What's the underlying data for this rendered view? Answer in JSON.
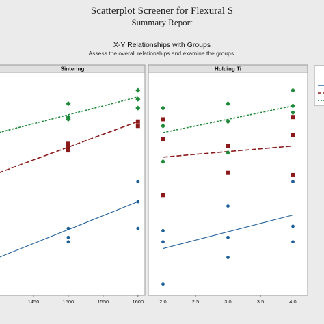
{
  "report": {
    "title": "Scatterplot Screener for Flexural S",
    "subtitle": "Summary Report"
  },
  "section": {
    "title": "X-Y Relationships with Groups",
    "subtitle": "Assess the overall relationships and examine the groups."
  },
  "colors": {
    "background": "#ebebeb",
    "panel_bg": "#ffffff",
    "strip_bg": "#e0e0e0",
    "blue": "#1f5f99",
    "red": "#8b1a1a",
    "green": "#1e8a3a"
  },
  "chart_data": [
    {
      "type": "scatter",
      "panel": "Sintering",
      "x_ticks": [
        1450,
        1500,
        1550,
        1600
      ],
      "xlim": [
        1400,
        1610
      ],
      "ylim": [
        0,
        100
      ],
      "series": [
        {
          "color": "blue",
          "marker": "circle",
          "line": "solid",
          "points": [
            [
              1500,
              30
            ],
            [
              1500,
              26
            ],
            [
              1500,
              24
            ],
            [
              1600,
              42
            ],
            [
              1600,
              51
            ],
            [
              1600,
              30
            ]
          ],
          "fit": [
            [
              1400,
              17
            ],
            [
              1600,
              42
            ]
          ]
        },
        {
          "color": "red",
          "marker": "square",
          "line": "dashed",
          "points": [
            [
              1500,
              68
            ],
            [
              1500,
              66
            ],
            [
              1500,
              65
            ],
            [
              1600,
              76
            ],
            [
              1600,
              78
            ]
          ],
          "fit": [
            [
              1400,
              55
            ],
            [
              1600,
              78
            ]
          ]
        },
        {
          "color": "green",
          "marker": "diamond",
          "line": "dotted",
          "points": [
            [
              1500,
              86
            ],
            [
              1500,
              80
            ],
            [
              1500,
              79
            ],
            [
              1600,
              92
            ],
            [
              1600,
              88
            ],
            [
              1600,
              84
            ]
          ],
          "fit": [
            [
              1400,
              73
            ],
            [
              1600,
              89
            ]
          ]
        }
      ]
    },
    {
      "type": "scatter",
      "panel": "Holding Ti",
      "x_ticks": [
        "2.0",
        "2.5",
        "3.0",
        "3.5",
        "4.0"
      ],
      "xlim": [
        1.9,
        4.1
      ],
      "ylim": [
        0,
        100
      ],
      "series": [
        {
          "color": "blue",
          "marker": "circle",
          "line": "solid",
          "points": [
            [
              2,
              29
            ],
            [
              2,
              24
            ],
            [
              2,
              5
            ],
            [
              3,
              26
            ],
            [
              3,
              40
            ],
            [
              3,
              17
            ],
            [
              4,
              51
            ],
            [
              4,
              31
            ],
            [
              4,
              24
            ]
          ],
          "fit": [
            [
              2,
              21
            ],
            [
              4,
              36
            ]
          ]
        },
        {
          "color": "red",
          "marker": "square",
          "line": "dashed",
          "points": [
            [
              2,
              79
            ],
            [
              2,
              70
            ],
            [
              2,
              45
            ],
            [
              3,
              67
            ],
            [
              3,
              55
            ],
            [
              4,
              80
            ],
            [
              4,
              54
            ],
            [
              4,
              72
            ]
          ],
          "fit": [
            [
              2,
              62
            ],
            [
              4,
              67
            ]
          ]
        },
        {
          "color": "green",
          "marker": "diamond",
          "line": "dotted",
          "points": [
            [
              2,
              84
            ],
            [
              2,
              76
            ],
            [
              2,
              60
            ],
            [
              3,
              86
            ],
            [
              3,
              64
            ],
            [
              3,
              78
            ],
            [
              4,
              92
            ],
            [
              4,
              85
            ],
            [
              4,
              82
            ]
          ],
          "fit": [
            [
              2,
              73
            ],
            [
              4,
              85
            ]
          ]
        }
      ]
    }
  ]
}
